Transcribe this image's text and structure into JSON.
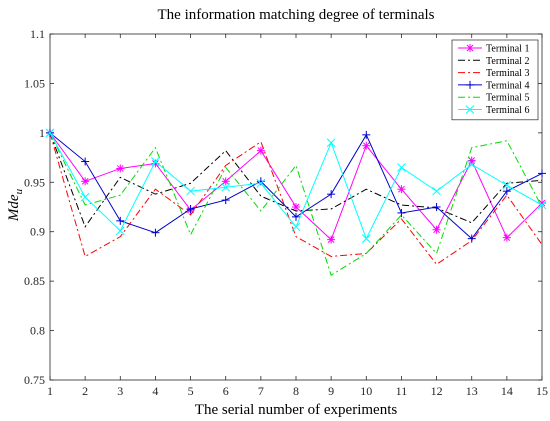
{
  "chart_data": {
    "type": "line",
    "title": "The information matching degree of terminals",
    "xlabel": "The serial number of experiments",
    "ylabel_main": "Mde",
    "ylabel_sub": "u",
    "xlim": [
      1,
      15
    ],
    "ylim": [
      0.75,
      1.1
    ],
    "xticks": [
      1,
      2,
      3,
      4,
      5,
      6,
      7,
      8,
      9,
      10,
      11,
      12,
      13,
      14,
      15
    ],
    "yticks": [
      0.75,
      0.8,
      0.85,
      0.9,
      0.95,
      1,
      1.05,
      1.1
    ],
    "ytick_labels": [
      "0.75",
      "0.8",
      "0.85",
      "0.9",
      "0.95",
      "1",
      "1.05",
      "1.1"
    ],
    "grid": false,
    "legend_position": "top-right",
    "x": [
      1,
      2,
      3,
      4,
      5,
      6,
      7,
      8,
      9,
      10,
      11,
      12,
      13,
      14,
      15
    ],
    "series": [
      {
        "name": "Terminal 1",
        "color": "#ff00ff",
        "dash": "solid",
        "marker": "asterisk",
        "values": [
          1.0,
          0.951,
          0.964,
          0.969,
          0.922,
          0.951,
          0.982,
          0.925,
          0.892,
          0.987,
          0.943,
          0.902,
          0.972,
          0.894,
          0.929
        ]
      },
      {
        "name": "Terminal 2",
        "color": "#000000",
        "dash": "dashdot",
        "marker": "none",
        "values": [
          1.0,
          0.905,
          0.955,
          0.938,
          0.949,
          0.982,
          0.936,
          0.921,
          0.923,
          0.943,
          0.927,
          0.924,
          0.909,
          0.949,
          0.952
        ]
      },
      {
        "name": "Terminal 3",
        "color": "#ff0000",
        "dash": "dashdot",
        "marker": "none",
        "values": [
          1.0,
          0.875,
          0.895,
          0.943,
          0.917,
          0.967,
          0.991,
          0.895,
          0.875,
          0.878,
          0.913,
          0.867,
          0.891,
          0.937,
          0.887
        ]
      },
      {
        "name": "Terminal 4",
        "color": "#0000cc",
        "dash": "solid",
        "marker": "plus",
        "values": [
          1.0,
          0.971,
          0.911,
          0.899,
          0.923,
          0.932,
          0.951,
          0.915,
          0.938,
          0.998,
          0.919,
          0.925,
          0.893,
          0.941,
          0.959
        ]
      },
      {
        "name": "Terminal 5",
        "color": "#00dd00",
        "dash": "dashdot",
        "marker": "none",
        "values": [
          1.0,
          0.927,
          0.937,
          0.985,
          0.897,
          0.965,
          0.921,
          0.967,
          0.856,
          0.878,
          0.917,
          0.878,
          0.985,
          0.992,
          0.925
        ]
      },
      {
        "name": "Terminal 6",
        "color": "#00ffff",
        "dash": "solid",
        "marker": "cross",
        "values": [
          1.0,
          0.935,
          0.901,
          0.971,
          0.941,
          0.945,
          0.949,
          0.905,
          0.99,
          0.893,
          0.965,
          0.941,
          0.968,
          0.947,
          0.927
        ]
      }
    ]
  }
}
